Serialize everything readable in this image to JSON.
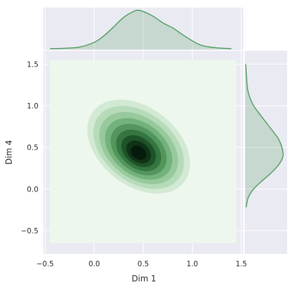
{
  "chart_data": {
    "type": "jointplot-kde",
    "xlabel": "Dim 1",
    "ylabel": "Dim 4",
    "xlim": [
      -0.52,
      1.52
    ],
    "ylim": [
      -0.78,
      1.66
    ],
    "xticks": [
      {
        "value": -0.5,
        "label": "−0.5"
      },
      {
        "value": 0.0,
        "label": "0.0"
      },
      {
        "value": 0.5,
        "label": "0.5"
      },
      {
        "value": 1.0,
        "label": "1.0"
      },
      {
        "value": 1.5,
        "label": "1.5"
      }
    ],
    "yticks": [
      {
        "value": -0.5,
        "label": "−0.5"
      },
      {
        "value": 0.0,
        "label": "0.0"
      },
      {
        "value": 0.5,
        "label": "0.5"
      },
      {
        "value": 1.0,
        "label": "1.0"
      },
      {
        "value": 1.5,
        "label": "1.5"
      }
    ],
    "grid": true,
    "kde_fill_range": {
      "x": [
        -0.45,
        1.45
      ],
      "y": [
        -0.65,
        1.55
      ]
    },
    "kde_peak": {
      "x": 0.45,
      "y": 0.45
    },
    "marginal_x": {
      "x": [
        -0.45,
        -0.3,
        -0.15,
        0.0,
        0.1,
        0.2,
        0.3,
        0.4,
        0.45,
        0.5,
        0.6,
        0.7,
        0.8,
        0.9,
        1.0,
        1.1,
        1.25,
        1.4
      ],
      "density": [
        0.02,
        0.03,
        0.06,
        0.18,
        0.35,
        0.58,
        0.82,
        0.97,
        1.0,
        0.97,
        0.85,
        0.68,
        0.55,
        0.38,
        0.22,
        0.1,
        0.04,
        0.02
      ]
    },
    "marginal_y": {
      "y": [
        -0.22,
        -0.1,
        0.0,
        0.1,
        0.2,
        0.3,
        0.4,
        0.5,
        0.6,
        0.7,
        0.8,
        0.9,
        1.0,
        1.1,
        1.2,
        1.35,
        1.5
      ],
      "density": [
        0.02,
        0.08,
        0.22,
        0.45,
        0.7,
        0.9,
        1.0,
        0.97,
        0.88,
        0.72,
        0.55,
        0.38,
        0.22,
        0.12,
        0.06,
        0.03,
        0.01
      ]
    },
    "colors": {
      "background": "#eaeaf2",
      "grid": "#ffffff",
      "kde_base": "#eef7ee",
      "kde_levels": [
        "#d2e9d4",
        "#b6dbb9",
        "#97c99c",
        "#74b27c",
        "#53955d",
        "#357540",
        "#1e5228",
        "#0f3317",
        "#061b0b"
      ],
      "marginal_line": "#4c9a5a",
      "marginal_fill": "#4c9a5a"
    }
  }
}
